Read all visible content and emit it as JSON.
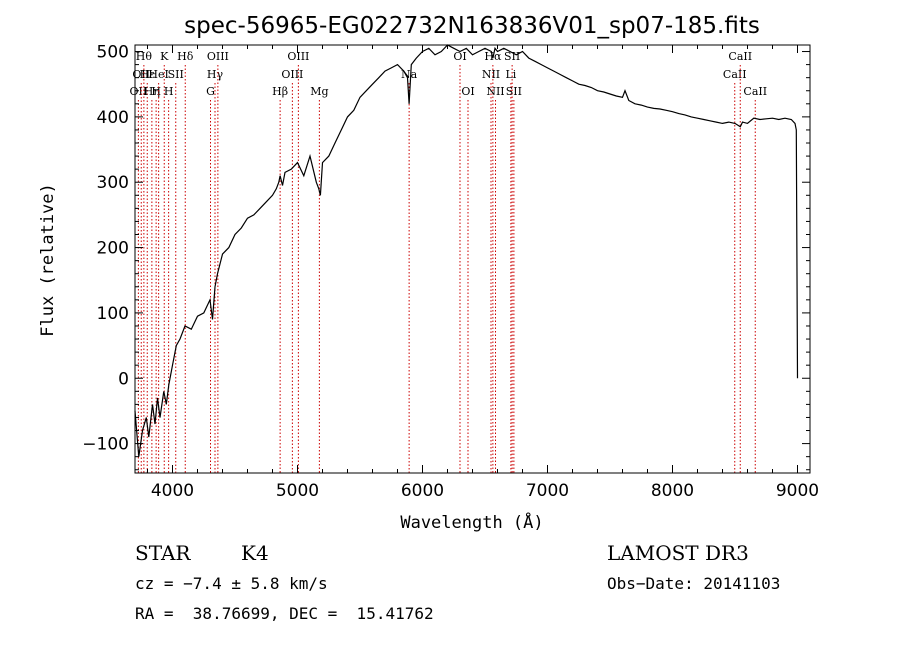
{
  "chart_data": {
    "type": "line",
    "title": "spec-56965-EG022732N163836V01_sp07-185.fits",
    "xlabel": "Wavelength (Å)",
    "ylabel": "Flux (relative)",
    "xlim": [
      3700,
      9100
    ],
    "ylim": [
      -145,
      510
    ],
    "xticks": [
      4000,
      5000,
      6000,
      7000,
      8000,
      9000
    ],
    "yticks": [
      -100,
      0,
      100,
      200,
      300,
      400,
      500
    ],
    "grid": false,
    "legend": "none",
    "series": [
      {
        "x": [
          3700,
          3730,
          3760,
          3790,
          3810,
          3840,
          3860,
          3880,
          3900,
          3930,
          3950,
          3970,
          4000,
          4030,
          4060,
          4100,
          4150,
          4200,
          4250,
          4300,
          4320,
          4340,
          4360,
          4400,
          4450,
          4500,
          4550,
          4600,
          4650,
          4700,
          4750,
          4800,
          4830,
          4850,
          4861,
          4880,
          4900,
          4950,
          5000,
          5050,
          5100,
          5150,
          5170,
          5183,
          5200,
          5250,
          5300,
          5350,
          5400,
          5450,
          5500,
          5550,
          5600,
          5650,
          5700,
          5750,
          5800,
          5850,
          5880,
          5893,
          5910,
          5950,
          6000,
          6050,
          6100,
          6150,
          6200,
          6250,
          6300,
          6350,
          6400,
          6450,
          6500,
          6550,
          6563,
          6580,
          6600,
          6650,
          6700,
          6750,
          6800,
          6850,
          6900,
          6950,
          7000,
          7050,
          7100,
          7150,
          7200,
          7250,
          7300,
          7350,
          7400,
          7450,
          7500,
          7550,
          7600,
          7620,
          7650,
          7700,
          7750,
          7800,
          7850,
          7900,
          7950,
          8000,
          8050,
          8100,
          8150,
          8200,
          8250,
          8300,
          8350,
          8400,
          8450,
          8500,
          8542,
          8560,
          8600,
          8650,
          8700,
          8750,
          8800,
          8850,
          8900,
          8950,
          8980,
          8990,
          9000
        ],
        "y": [
          -50,
          -120,
          -80,
          -60,
          -90,
          -40,
          -70,
          -30,
          -60,
          -20,
          -40,
          -10,
          20,
          50,
          60,
          80,
          75,
          95,
          100,
          120,
          90,
          140,
          160,
          190,
          200,
          220,
          230,
          245,
          250,
          260,
          270,
          280,
          290,
          300,
          310,
          295,
          315,
          320,
          330,
          310,
          340,
          300,
          290,
          280,
          330,
          340,
          360,
          380,
          400,
          410,
          430,
          440,
          450,
          460,
          470,
          475,
          480,
          470,
          460,
          420,
          480,
          490,
          500,
          505,
          495,
          500,
          510,
          505,
          500,
          505,
          495,
          500,
          505,
          500,
          490,
          505,
          500,
          505,
          500,
          495,
          500,
          490,
          485,
          480,
          475,
          470,
          465,
          460,
          455,
          450,
          448,
          445,
          440,
          438,
          435,
          432,
          430,
          440,
          425,
          420,
          418,
          415,
          413,
          412,
          410,
          408,
          405,
          403,
          400,
          398,
          396,
          394,
          392,
          390,
          392,
          390,
          385,
          392,
          390,
          398,
          396,
          397,
          398,
          396,
          398,
          396,
          390,
          380,
          0
        ]
      }
    ],
    "line_markers": [
      {
        "wl": 3727,
        "label": "OII",
        "row": 2
      },
      {
        "wl": 3750,
        "label": "OII",
        "row": 1
      },
      {
        "wl": 3771,
        "label": "Hθ",
        "row": 0
      },
      {
        "wl": 3798,
        "label": "Hε",
        "row": 1
      },
      {
        "wl": 3835,
        "label": "Hη",
        "row": 2
      },
      {
        "wl": 3869,
        "label": "H",
        "row": 2
      },
      {
        "wl": 3889,
        "label": "HeI",
        "row": 1
      },
      {
        "wl": 3934,
        "label": "K",
        "row": 0
      },
      {
        "wl": 3969,
        "label": "H",
        "row": 2
      },
      {
        "wl": 4026,
        "label": "SII",
        "row": 1
      },
      {
        "wl": 4102,
        "label": "Hδ",
        "row": 0
      },
      {
        "wl": 4304,
        "label": "G",
        "row": 2
      },
      {
        "wl": 4340,
        "label": "Hγ",
        "row": 1
      },
      {
        "wl": 4363,
        "label": "OIII",
        "row": 0
      },
      {
        "wl": 4861,
        "label": "Hβ",
        "row": 2
      },
      {
        "wl": 4959,
        "label": "OIII",
        "row": 1
      },
      {
        "wl": 5007,
        "label": "OIII",
        "row": 0
      },
      {
        "wl": 5175,
        "label": "Mg",
        "row": 2
      },
      {
        "wl": 5893,
        "label": "Na",
        "row": 1
      },
      {
        "wl": 6300,
        "label": "OI",
        "row": 0
      },
      {
        "wl": 6364,
        "label": "OI",
        "row": 2
      },
      {
        "wl": 6548,
        "label": "NII",
        "row": 1
      },
      {
        "wl": 6563,
        "label": "Hα",
        "row": 0
      },
      {
        "wl": 6584,
        "label": "NII",
        "row": 2
      },
      {
        "wl": 6707,
        "label": "Li",
        "row": 1
      },
      {
        "wl": 6717,
        "label": "SII",
        "row": 0
      },
      {
        "wl": 6731,
        "label": "SII",
        "row": 2
      },
      {
        "wl": 8498,
        "label": "CaII",
        "row": 1
      },
      {
        "wl": 8542,
        "label": "CaII",
        "row": 0
      },
      {
        "wl": 8662,
        "label": "CaII",
        "row": 2
      }
    ]
  },
  "footer": {
    "object_class": "STAR",
    "subclass": "K4",
    "survey": "LAMOST DR3",
    "cz": "cz = −7.4 ± 5.8 km/s",
    "obs_date": "Obs−Date: 20141103",
    "coords": "RA =  38.76699, DEC =  15.41762"
  },
  "colors": {
    "axes": "#000000",
    "spectrum": "#000000",
    "line_markers": "#cc0000"
  }
}
